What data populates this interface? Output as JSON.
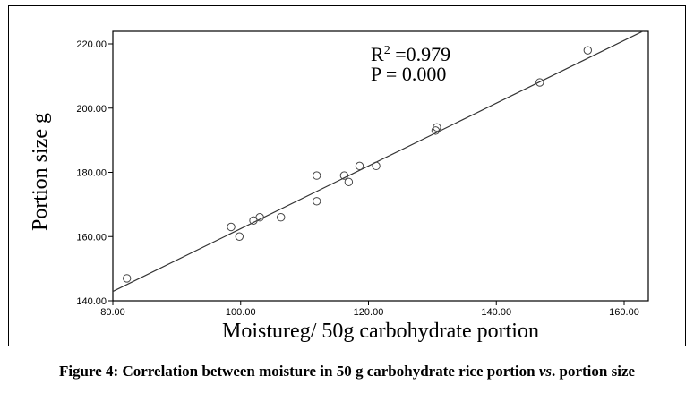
{
  "chart_data": {
    "type": "scatter",
    "xlabel": "Moistureg/ 50g carbohydrate portion",
    "ylabel": "Portion size g",
    "xlim": [
      80,
      160
    ],
    "ylim": [
      140,
      220
    ],
    "x_ticks": [
      "80.00",
      "100.00",
      "120.00",
      "140.00",
      "160.00"
    ],
    "y_ticks": [
      "140.00",
      "160.00",
      "180.00",
      "200.00",
      "220.00"
    ],
    "x_tick_values": [
      80,
      100,
      120,
      140,
      160
    ],
    "y_tick_values": [
      140,
      160,
      180,
      200,
      220
    ],
    "grid": false,
    "points": [
      {
        "x": 82.2,
        "y": 147
      },
      {
        "x": 98.5,
        "y": 163
      },
      {
        "x": 99.8,
        "y": 160
      },
      {
        "x": 102.0,
        "y": 165
      },
      {
        "x": 103.0,
        "y": 166
      },
      {
        "x": 106.3,
        "y": 166
      },
      {
        "x": 111.9,
        "y": 179
      },
      {
        "x": 111.9,
        "y": 171
      },
      {
        "x": 116.2,
        "y": 179
      },
      {
        "x": 116.9,
        "y": 177
      },
      {
        "x": 118.6,
        "y": 182
      },
      {
        "x": 121.2,
        "y": 182
      },
      {
        "x": 130.5,
        "y": 193
      },
      {
        "x": 130.7,
        "y": 194
      },
      {
        "x": 146.8,
        "y": 208
      },
      {
        "x": 154.3,
        "y": 218
      }
    ],
    "fit_line": {
      "x": [
        80,
        163.3
      ],
      "y": [
        142.9,
        224.3
      ]
    },
    "annotations": [
      {
        "label": "R",
        "sup": "2",
        "text": " =0.979"
      },
      {
        "text": "P  = 0.000"
      }
    ]
  },
  "caption": {
    "prefix": "Figure 4: Correlation between moisture in 50 g carbohydrate rice portion ",
    "italic": "vs",
    "suffix": ". portion size"
  }
}
